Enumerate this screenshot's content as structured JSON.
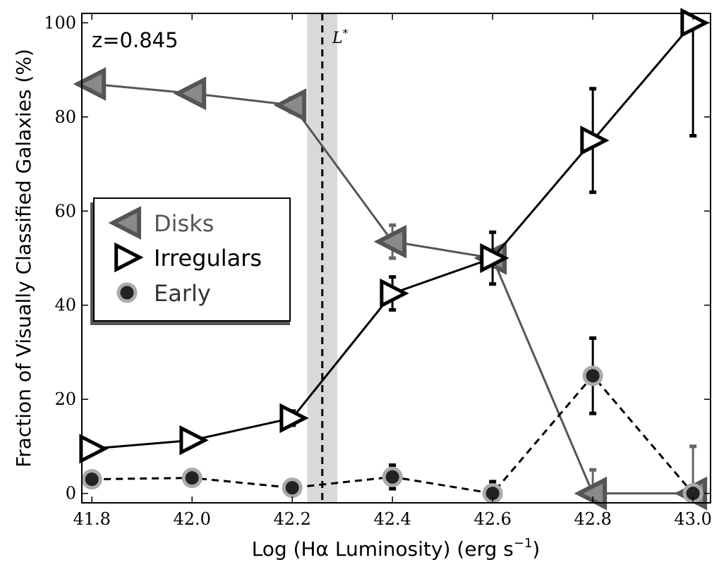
{
  "chart_data": {
    "type": "line",
    "title": "",
    "xlabel": "Log (Hα Luminosity) (erg s",
    "xlabel_sup": "−1",
    "xlabel_end": ")",
    "ylabel": "Fraction of Visually Classified Galaxies (%)",
    "xlim": [
      41.78,
      43.035
    ],
    "ylim": [
      -2,
      102
    ],
    "x_ticks": [
      41.8,
      42.0,
      42.2,
      42.4,
      42.6,
      42.8,
      43.0
    ],
    "x_tick_labels": [
      "41.8",
      "42.0",
      "42.2",
      "42.4",
      "42.6",
      "42.8",
      "43.0"
    ],
    "y_ticks": [
      0,
      20,
      40,
      60,
      80,
      100
    ],
    "y_tick_labels": [
      "0",
      "20",
      "40",
      "60",
      "80",
      "100"
    ],
    "annotation": "z=0.845",
    "lstar": {
      "label": "L*",
      "x": 42.26,
      "band": [
        42.23,
        42.29
      ]
    },
    "legend_position": "center-left",
    "series": [
      {
        "name": "Disks",
        "marker": "left-triangle",
        "color": "#555555",
        "line": "solid",
        "x": [
          41.8,
          42.0,
          42.2,
          42.4,
          42.6,
          42.8,
          43.0
        ],
        "y": [
          87,
          85,
          82.5,
          53.5,
          50,
          0,
          0
        ],
        "err_low": [
          0,
          0,
          1.5,
          3.5,
          0,
          0,
          0
        ],
        "err_high": [
          0,
          0,
          1.5,
          3.5,
          0,
          5,
          10
        ]
      },
      {
        "name": "Irregulars",
        "marker": "right-triangle",
        "color": "#000000",
        "line": "solid",
        "x": [
          41.8,
          42.0,
          42.2,
          42.4,
          42.6,
          42.8,
          43.0
        ],
        "y": [
          9.5,
          11.3,
          16,
          42.5,
          50,
          75,
          100
        ],
        "err_low": [
          0,
          0,
          1.5,
          3.5,
          5.5,
          11,
          24
        ],
        "err_high": [
          0,
          0,
          1.5,
          3.5,
          5.5,
          11,
          0
        ]
      },
      {
        "name": "Early",
        "marker": "circle",
        "color": "#222222",
        "edge": "#aaaaaa",
        "line": "dashed",
        "x": [
          41.8,
          42.0,
          42.2,
          42.4,
          42.6,
          42.8,
          43.0
        ],
        "y": [
          3,
          3.3,
          1.2,
          3.5,
          0,
          25,
          0
        ],
        "err_low": [
          0,
          0,
          0,
          2.5,
          0,
          8,
          0
        ],
        "err_high": [
          0,
          0,
          0,
          2.5,
          2.5,
          8,
          0
        ]
      }
    ]
  }
}
